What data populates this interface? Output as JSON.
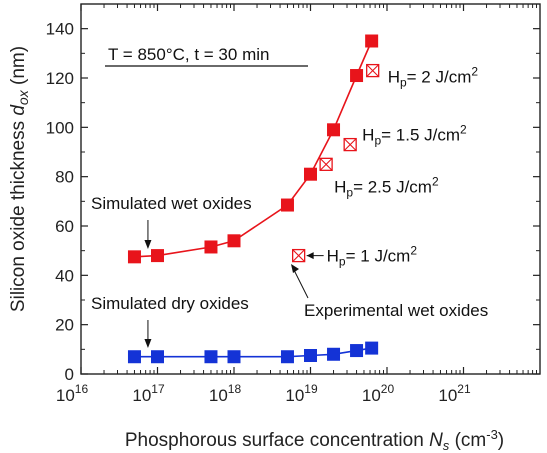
{
  "chart_data": {
    "type": "scatter",
    "xlabel": {
      "text": "Phosphorous surface concentration ",
      "var": "N",
      "sub": "s",
      "unit": " (cm",
      "unit_sup": "-3",
      "unit_end": ")"
    },
    "ylabel": {
      "text": "Silicon oxide thickness  ",
      "var": "d",
      "sub": "ox",
      "unit": " (nm)"
    },
    "xscale": "log",
    "xlim": [
      1e+16,
      1e+22
    ],
    "ylim": [
      0,
      150
    ],
    "x_ticks": [
      {
        "value": 1e+16,
        "base": "10",
        "exp": "16"
      },
      {
        "value": 1e+17,
        "base": "10",
        "exp": "17"
      },
      {
        "value": 1e+18,
        "base": "10",
        "exp": "18"
      },
      {
        "value": 1e+19,
        "base": "10",
        "exp": "19"
      },
      {
        "value": 1e+20,
        "base": "10",
        "exp": "20"
      },
      {
        "value": 1e+21,
        "base": "10",
        "exp": "21"
      }
    ],
    "y_ticks": [
      0,
      20,
      40,
      60,
      80,
      100,
      120,
      140
    ],
    "grid": false,
    "conditions": "T = 850°C, t = 30 min",
    "series": [
      {
        "name": "Simulated wet oxides",
        "color": "#e8141b",
        "marker": "square-filled",
        "points": [
          {
            "x": 5e+16,
            "y": 47.5
          },
          {
            "x": 1e+17,
            "y": 48.0
          },
          {
            "x": 5e+17,
            "y": 51.5
          },
          {
            "x": 1e+18,
            "y": 54.0
          },
          {
            "x": 5e+18,
            "y": 68.5
          },
          {
            "x": 1e+19,
            "y": 81.0
          },
          {
            "x": 2e+19,
            "y": 99.0
          },
          {
            "x": 4e+19,
            "y": 121.0
          },
          {
            "x": 6.3e+19,
            "y": 135.0
          }
        ]
      },
      {
        "name": "Simulated dry oxides",
        "color": "#1433d6",
        "marker": "square-filled",
        "points": [
          {
            "x": 5e+16,
            "y": 7.0
          },
          {
            "x": 1e+17,
            "y": 7.0
          },
          {
            "x": 5e+17,
            "y": 7.0
          },
          {
            "x": 1e+18,
            "y": 7.0
          },
          {
            "x": 5e+18,
            "y": 7.0
          },
          {
            "x": 1e+19,
            "y": 7.5
          },
          {
            "x": 2e+19,
            "y": 8.0
          },
          {
            "x": 4e+19,
            "y": 9.5
          },
          {
            "x": 6.3e+19,
            "y": 10.5
          }
        ]
      },
      {
        "name": "Experimental wet oxides",
        "color": "#e8141b",
        "marker": "square-crossed",
        "points": [
          {
            "x": 7e+18,
            "y": 48.0,
            "label": {
              "pre": "H",
              "sub": "p",
              "mid": "= 1 J/cm",
              "sup": "2"
            }
          },
          {
            "x": 1.6e+19,
            "y": 85.0,
            "label": {
              "pre": "H",
              "sub": "p",
              "mid": "= 2.5 J/cm",
              "sup": "2"
            }
          },
          {
            "x": 3.3e+19,
            "y": 93.0,
            "label": {
              "pre": "H",
              "sub": "p",
              "mid": "= 1.5 J/cm",
              "sup": "2"
            }
          },
          {
            "x": 6.5e+19,
            "y": 123.0,
            "label": {
              "pre": "H",
              "sub": "p",
              "mid": "= 2 J/cm",
              "sup": "2"
            }
          }
        ]
      }
    ]
  }
}
